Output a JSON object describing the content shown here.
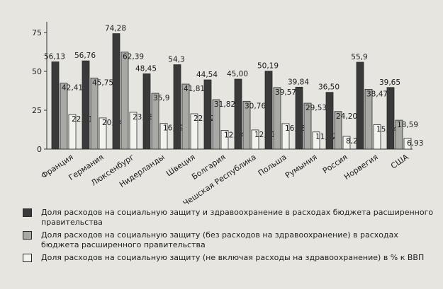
{
  "chart_data": {
    "type": "bar",
    "categories": [
      "Франция",
      "Германия",
      "Люксенбург",
      "Нидерланды",
      "Швеция",
      "Болгария",
      "Чешская Республика",
      "Польша",
      "Румыния",
      "Россия",
      "Норвегия",
      "США"
    ],
    "series": [
      {
        "name": "Доля расходов на социальную защиту и здравоохранение в расходах бюджета расширенного правительства",
        "values": [
          56.13,
          56.76,
          74.28,
          48.45,
          54.3,
          44.54,
          45.0,
          50.19,
          39.84,
          36.5,
          55.9,
          39.65
        ],
        "labels": [
          "56,13",
          "56,76",
          "74,28",
          "48,45",
          "54,3",
          "44,54",
          "45,00",
          "50,19",
          "39,84",
          "36,50",
          "55,9",
          "39,65"
        ],
        "color": "#3a3a3a"
      },
      {
        "name": "Доля расходов на социальную защиту (без расходов на здравоохранение) в расходах бюджета расширенного правительства",
        "values": [
          42.41,
          45.75,
          62.39,
          35.9,
          41.81,
          31.82,
          30.76,
          39.57,
          29.53,
          24.2,
          38.47,
          18.59
        ],
        "labels": [
          "42,41",
          "45,75",
          "62,39",
          "35,9",
          "41,81",
          "31,82",
          "30,76",
          "39,57",
          "29,53",
          "24,20",
          "38,47",
          "18,59"
        ],
        "color": "#a8a8a4"
      },
      {
        "name": "Доля расходов на социальную защиту (не включая расходы на здравоохранение) в % к ВВП",
        "values": [
          22.21,
          20.04,
          23.68,
          16.49,
          22.72,
          12.04,
          12.31,
          16.38,
          11.02,
          8.2,
          15.64,
          6.93
        ],
        "labels": [
          "22,21",
          "20,04",
          "23,68",
          "16,49",
          "22,72",
          "12,04",
          "12,31",
          "16,38",
          "11,02",
          "8,20",
          "15,64",
          "6,93"
        ],
        "color": "#f2f2ee"
      }
    ],
    "yticks": [
      "0",
      "25",
      "50",
      "75"
    ],
    "ylim": [
      0,
      80
    ],
    "grid": false,
    "legend_position": "bottom"
  }
}
